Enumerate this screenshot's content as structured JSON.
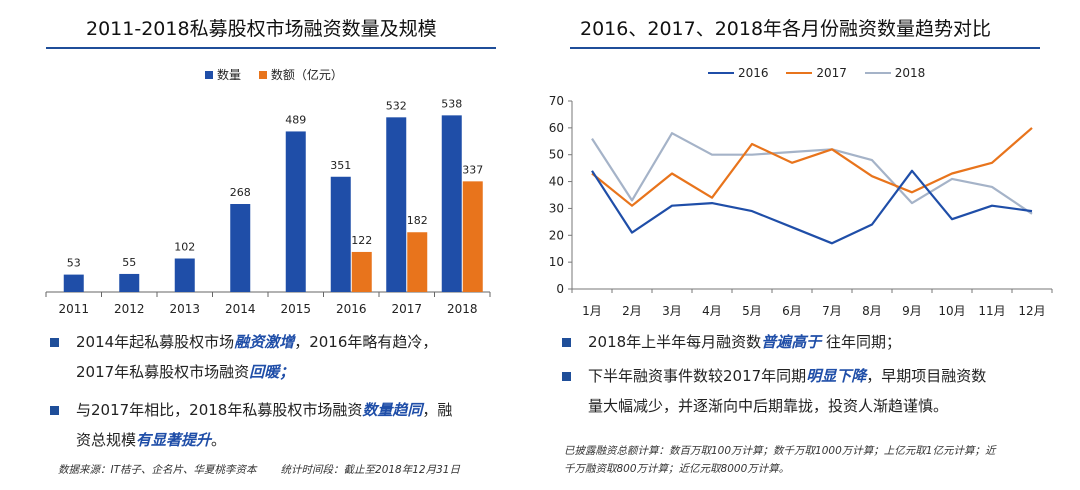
{
  "left": {
    "title": "2011-2018私募股权市场融资数量及规模",
    "legend": [
      {
        "label": "数量",
        "color": "#1f4ea8"
      },
      {
        "label": "数额（亿元）",
        "color": "#e8741c"
      }
    ],
    "bullets": [
      {
        "pre": "2014年起私募股权市场",
        "hl1": "融资激增",
        "mid": "，2016年略有趋冷，",
        "line2pre": "2017年私募股权市场融资",
        "hl2": "回暖；"
      },
      {
        "pre": "与2017年相比，2018年私募股权市场融资",
        "hl1": "数量趋同",
        "mid": "，融",
        "line2pre": "资总规模",
        "hl2": "有显著提升",
        "end": "。"
      }
    ],
    "source": "数据来源：IT桔子、企名片、华夏桃李资本",
    "period": "统计时间段：截止至2018年12月31日"
  },
  "right": {
    "title": "2016、2017、2018年各月份融资数量趋势对比",
    "bullets": [
      {
        "pre": "2018年上半年每月融资数",
        "hl": "普遍高于",
        "post": " 往年同期；"
      },
      {
        "pre": "下半年融资事件数较2017年同期",
        "hl": "明显下降",
        "post": "，早期项目融资数",
        "line2": "量大幅减少，并逐渐向中后期靠拢，投资人渐趋谨慎。"
      }
    ],
    "note1": "已披露融资总额计算：数百万取100万计算；数千万取1000万计算；上亿元取1亿元计算；近",
    "note2": "千万融资取800万计算；近亿元取8000万计算。"
  },
  "chart_data": [
    {
      "type": "bar",
      "title": "2011-2018私募股权市场融资数量及规模",
      "categories": [
        "2011",
        "2012",
        "2013",
        "2014",
        "2015",
        "2016",
        "2017",
        "2018"
      ],
      "series": [
        {
          "name": "数量",
          "color": "#1f4ea8",
          "values": [
            53,
            55,
            102,
            268,
            489,
            351,
            532,
            538
          ]
        },
        {
          "name": "数额（亿元）",
          "color": "#e8741c",
          "values": [
            null,
            null,
            null,
            null,
            null,
            122,
            182,
            337
          ]
        }
      ],
      "ylim": [
        0,
        600
      ],
      "grid": false,
      "legend": "top-center"
    },
    {
      "type": "line",
      "title": "2016、2017、2018年各月份融资数量趋势对比",
      "categories": [
        "1月",
        "2月",
        "3月",
        "4月",
        "5月",
        "6月",
        "7月",
        "8月",
        "9月",
        "10月",
        "11月",
        "12月"
      ],
      "series": [
        {
          "name": "2016",
          "color": "#1f4ea8",
          "values": [
            44,
            21,
            31,
            32,
            29,
            23,
            17,
            24,
            44,
            26,
            31,
            29
          ]
        },
        {
          "name": "2017",
          "color": "#e8741c",
          "values": [
            43,
            31,
            43,
            34,
            54,
            47,
            52,
            42,
            36,
            43,
            47,
            60
          ]
        },
        {
          "name": "2018",
          "color": "#a5b3c8",
          "values": [
            56,
            33,
            58,
            50,
            50,
            51,
            52,
            48,
            32,
            41,
            38,
            28
          ]
        }
      ],
      "yticks": [
        "0",
        "10",
        "20",
        "30",
        "40",
        "50",
        "60",
        "70"
      ],
      "ylim": [
        0,
        70
      ],
      "grid": false,
      "legend": "top-center"
    }
  ]
}
